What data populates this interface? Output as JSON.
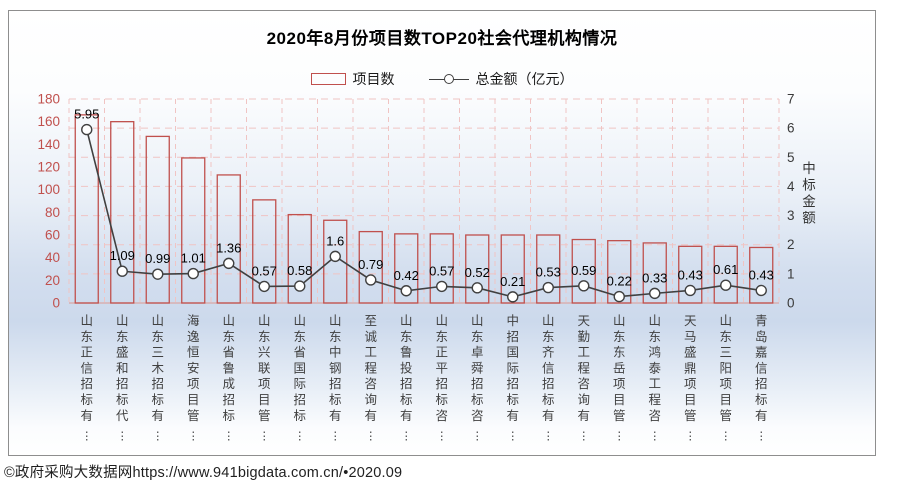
{
  "chart_data": {
    "type": "bar",
    "title": "2020年8月份项目数TOP20社会代理机构情况",
    "categories": [
      "山东正信招标有",
      "山东盛和招标代",
      "山东三木招标有",
      "海逸恒安项目管",
      "山东省鲁成招标",
      "山东兴联项目管",
      "山东省国际招标",
      "山东中钢招标有",
      "至诚工程咨询有",
      "山东鲁投招标有",
      "山东正平招标咨",
      "山东卓舜招标咨",
      "中招国际招标有",
      "山东齐信招标有",
      "天勤工程咨询有",
      "山东东岳项目管",
      "山东鸿泰工程咨",
      "天马盛鼎项目管",
      "山东三阳项目管",
      "青岛嘉信招标有"
    ],
    "category_truncation_mark": "⋮",
    "series": [
      {
        "name": "项目数",
        "type": "bar",
        "axis": "left",
        "color": "#C0504D",
        "values": [
          166,
          160,
          147,
          128,
          113,
          91,
          78,
          73,
          63,
          61,
          61,
          60,
          60,
          60,
          56,
          55,
          53,
          50,
          50,
          49
        ]
      },
      {
        "name": "总金额（亿元）",
        "type": "line",
        "axis": "right",
        "color": "#404040",
        "values": [
          5.95,
          1.09,
          0.99,
          1.01,
          1.36,
          0.57,
          0.58,
          1.6,
          0.79,
          0.42,
          0.57,
          0.52,
          0.21,
          0.53,
          0.59,
          0.22,
          0.33,
          0.43,
          0.61,
          0.43
        ],
        "data_labels": true
      }
    ],
    "left_axis": {
      "min": 0,
      "max": 180,
      "step": 20,
      "tick_color": "#C0504D"
    },
    "right_axis": {
      "min": 0,
      "max": 7,
      "step": 1,
      "title": "中标金额",
      "tick_color": "#3a3a3a"
    },
    "grid": {
      "horizontal": true,
      "vertical": true,
      "style": "dashed",
      "color": "#F0C4C3"
    },
    "legend_position": "top"
  },
  "colors": {
    "bar_outline": "#C0504D",
    "line": "#404040",
    "marker_fill": "#ffffff",
    "grid_pink": "#F0C4C3",
    "axis_left_labels": "#C0504D",
    "axis_right_labels": "#3a3a3a",
    "category_labels": "#404040",
    "data_labels": "#000000",
    "background_blue": "#ccd9ec"
  },
  "footer": {
    "credit": "©政府采购大数据网https://www.941bigdata.com.cn/•2020.09"
  }
}
